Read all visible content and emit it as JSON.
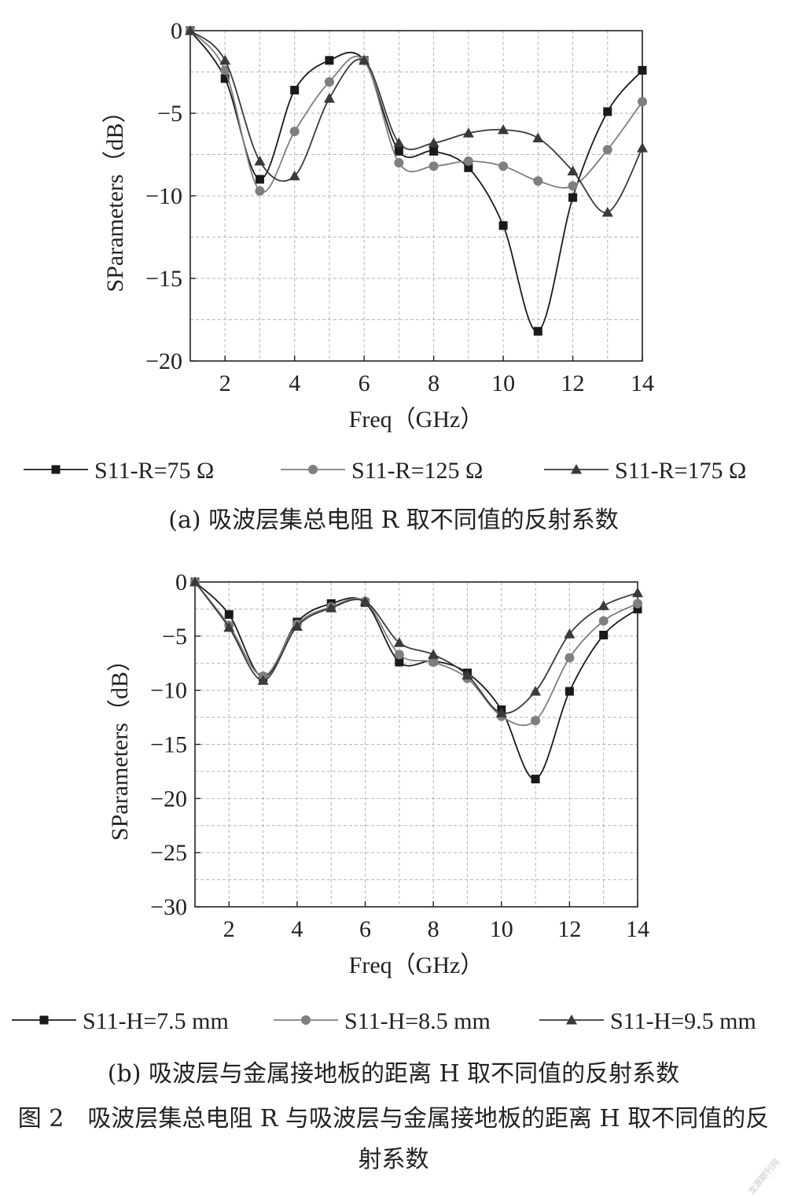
{
  "chart_data": [
    {
      "type": "line",
      "title": "",
      "xlabel": "Freq（GHz）",
      "ylabel": "SParameters（dB）",
      "xlim": [
        1,
        14
      ],
      "ylim": [
        -20,
        0
      ],
      "xticks": [
        2,
        4,
        6,
        8,
        10,
        12,
        14
      ],
      "yticks": [
        0,
        -5,
        -10,
        -15,
        -20
      ],
      "grid": true,
      "legend_position": "bottom",
      "x": [
        1,
        2,
        3,
        4,
        5,
        6,
        7,
        8,
        9,
        10,
        11,
        12,
        13,
        14
      ],
      "series": [
        {
          "name": "S11-R=75 Ω",
          "marker": "square",
          "color": "#1a1a1a",
          "values": [
            0,
            -2.9,
            -9.0,
            -3.6,
            -1.8,
            -1.8,
            -7.3,
            -7.3,
            -8.3,
            -11.8,
            -18.2,
            -10.1,
            -4.9,
            -2.4
          ]
        },
        {
          "name": "S11-R=125 Ω",
          "marker": "circle",
          "color": "#7f7f7f",
          "values": [
            0,
            -2.4,
            -9.7,
            -6.1,
            -3.1,
            -1.8,
            -8.0,
            -8.2,
            -7.9,
            -8.2,
            -9.1,
            -9.4,
            -7.2,
            -4.3
          ]
        },
        {
          "name": "S11-R=175 Ω",
          "marker": "triangle",
          "color": "#3a3a3a",
          "values": [
            0,
            -1.8,
            -7.9,
            -8.8,
            -4.1,
            -1.8,
            -6.8,
            -6.8,
            -6.2,
            -6.0,
            -6.5,
            -8.5,
            -11.0,
            -7.1
          ]
        }
      ]
    },
    {
      "type": "line",
      "title": "",
      "xlabel": "Freq（GHz）",
      "ylabel": "SParameters（dB）",
      "xlim": [
        1,
        14
      ],
      "ylim": [
        -30,
        0
      ],
      "xticks": [
        2,
        4,
        6,
        8,
        10,
        12,
        14
      ],
      "yticks": [
        0,
        -5,
        -10,
        -15,
        -20,
        -25,
        -30
      ],
      "grid": true,
      "legend_position": "bottom",
      "x": [
        1,
        2,
        3,
        4,
        5,
        6,
        7,
        8,
        9,
        10,
        11,
        12,
        13,
        14
      ],
      "series": [
        {
          "name": "S11-H=7.5 mm",
          "marker": "square",
          "color": "#1a1a1a",
          "values": [
            0,
            -3.0,
            -8.8,
            -3.7,
            -2.0,
            -1.9,
            -7.4,
            -7.3,
            -8.4,
            -11.8,
            -18.2,
            -10.1,
            -4.9,
            -2.5
          ]
        },
        {
          "name": "S11-H=8.5 mm",
          "marker": "circle",
          "color": "#7f7f7f",
          "values": [
            0,
            -4.0,
            -8.7,
            -3.9,
            -2.3,
            -1.8,
            -6.7,
            -7.4,
            -8.9,
            -12.4,
            -12.8,
            -7.0,
            -3.6,
            -2.0
          ]
        },
        {
          "name": "S11-H=9.5 mm",
          "marker": "triangle",
          "color": "#3a3a3a",
          "values": [
            0,
            -4.2,
            -9.1,
            -4.1,
            -2.4,
            -1.8,
            -5.6,
            -6.7,
            -8.6,
            -12.1,
            -10.1,
            -4.8,
            -2.2,
            -1.0
          ]
        }
      ]
    }
  ],
  "captions": {
    "a": "(a) 吸波层集总电阻 R 取不同值的反射系数",
    "b": "(b) 吸波层与金属接地板的距离 H 取不同值的反射系数",
    "figure": "图 2　吸波层集总电阻 R 与吸波层与金属接地板的距离 H 取不同值的反射系数"
  },
  "watermark": "龙源期刊网"
}
